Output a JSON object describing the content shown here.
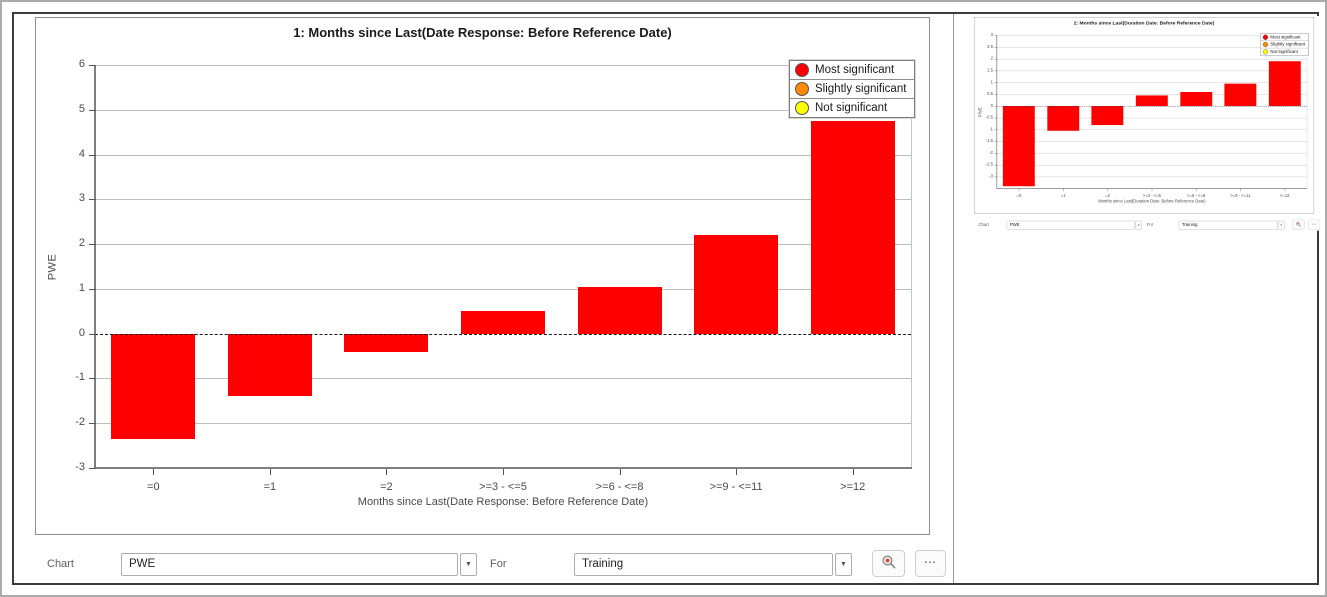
{
  "controls": {
    "chart_label": "Chart",
    "chart_select_value": "PWE",
    "for_label": "For",
    "for_select_value": "Training",
    "dropdown_arrow": "▼",
    "more_button": "...",
    "zoom_icon": "magnifier-with-red-dot"
  },
  "legend": {
    "position": "top-right",
    "items": [
      {
        "label": "Most significant",
        "color": "#ff0000"
      },
      {
        "label": "Slightly significant",
        "color": "#ff8c00"
      },
      {
        "label": "Not significant",
        "color": "#ffff00"
      }
    ]
  },
  "chart_data": [
    {
      "type": "bar",
      "title": "1: Months since Last(Date Response: Before Reference Date)",
      "categories": [
        "=0",
        "=1",
        "=2",
        ">=3 - <=5",
        ">=6 - <=8",
        ">=9 - <=11",
        ">=12"
      ],
      "values": [
        -2.35,
        -1.4,
        -0.4,
        0.5,
        1.05,
        2.2,
        4.75
      ],
      "xlabel": "Months since Last(Date Response: Before Reference Date)",
      "ylabel": "PWE",
      "ylim": [
        -3,
        6
      ],
      "yticks": [
        6,
        5,
        4,
        3,
        2,
        1,
        0,
        -1,
        -2,
        -3
      ],
      "bar_color": "#ff0000",
      "grid": true,
      "legend_position": "top-right"
    },
    {
      "type": "bar",
      "title": "2: Months since Last(Duration Date: Before Reference Date)",
      "categories": [
        "=0",
        "=1",
        "=2",
        ">=3 - <=5",
        ">=6 - <=8",
        ">=9 - <=11",
        ">=12"
      ],
      "values": [
        -3.4,
        -1.05,
        -0.8,
        0.45,
        0.6,
        0.95,
        1.9
      ],
      "xlabel": "Months since Last(Duration Date: Before Reference Date)",
      "ylabel": "PWE",
      "ylim": [
        -3.5,
        3
      ],
      "yticks": [
        3,
        2.5,
        2,
        1.5,
        1,
        0.5,
        0,
        -0.5,
        -1,
        -1.5,
        -2,
        -2.5,
        -3
      ],
      "bar_color": "#ff0000",
      "grid": true,
      "legend_position": "top-right"
    }
  ]
}
